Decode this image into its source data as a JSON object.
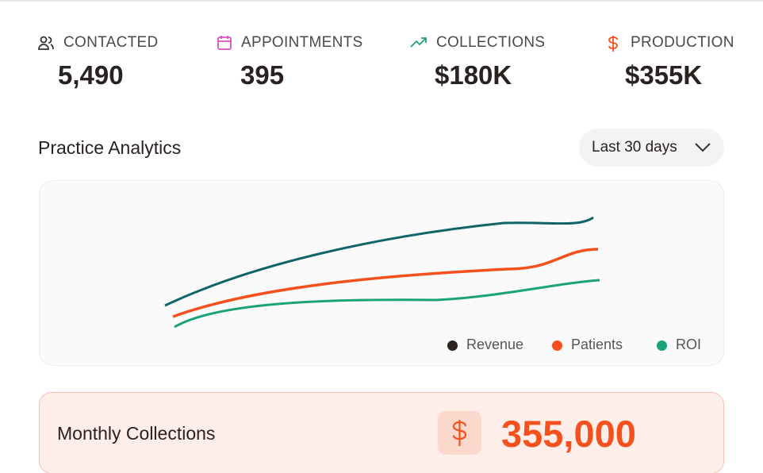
{
  "stats": [
    {
      "label": "CONTACTED",
      "value": "5,490"
    },
    {
      "label": "APPOINTMENTS",
      "value": "395"
    },
    {
      "label": "COLLECTIONS",
      "value": "$180K"
    },
    {
      "label": "PRODUCTION",
      "value": "$355K"
    }
  ],
  "analytics": {
    "title": "Practice Analytics",
    "range": "Last 30 days",
    "legend": [
      "Revenue",
      "Patients",
      "ROI"
    ]
  },
  "monthly": {
    "label": "Monthly Collections",
    "value": "355,000"
  }
}
